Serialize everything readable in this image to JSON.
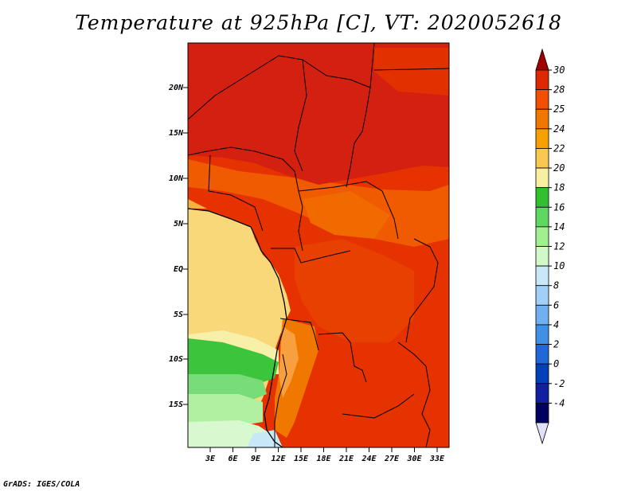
{
  "title": "Temperature at 925hPa [C], VT: 2020052618",
  "credit": "GrADS: IGES/COLA",
  "map": {
    "lat_labels": [
      "20N",
      "15N",
      "10N",
      "5N",
      "EQ",
      "5S",
      "10S",
      "15S"
    ],
    "lon_labels": [
      "3E",
      "6E",
      "9E",
      "12E",
      "15E",
      "18E",
      "21E",
      "24E",
      "27E",
      "30E",
      "33E"
    ]
  },
  "colorbar": {
    "levels": [
      "30",
      "28",
      "25",
      "24",
      "22",
      "20",
      "18",
      "16",
      "14",
      "12",
      "10",
      "8",
      "6",
      "4",
      "2",
      "0",
      "-2",
      "-4"
    ],
    "colors": [
      "#a00000",
      "#e02800",
      "#f05000",
      "#f07800",
      "#f8a000",
      "#f8c850",
      "#f8f0a0",
      "#30c030",
      "#60d860",
      "#a0f090",
      "#d0f8c8",
      "#c8e8f8",
      "#a0d0f8",
      "#70b0f0",
      "#4090e8",
      "#2068d8",
      "#0040b8",
      "#1020a0",
      "#000060",
      "#e0e0f8"
    ]
  },
  "colors": {
    "ocean_cool": "#f8d880",
    "land_hot": "#e02800",
    "sahara": "#d02010",
    "border": "#000000"
  }
}
